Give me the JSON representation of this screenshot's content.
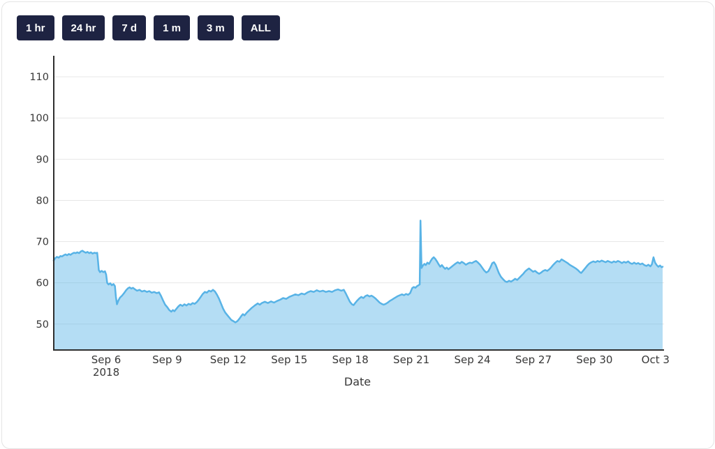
{
  "toolbar": {
    "buttons": [
      {
        "label": "1 hr"
      },
      {
        "label": "24 hr"
      },
      {
        "label": "7 d"
      },
      {
        "label": "1 m"
      },
      {
        "label": "3 m"
      },
      {
        "label": "ALL"
      }
    ]
  },
  "colors": {
    "button_bg": "#1e2342",
    "button_text": "#ffffff",
    "line": "#58b3e6",
    "area_fill": "rgba(88,179,230,0.45)",
    "grid": "#e7e7e7",
    "axis": "#2f2f2f",
    "tick_text": "#383838",
    "card_border": "#e4e4e4"
  },
  "chart_data": {
    "type": "area",
    "xlabel": "Date",
    "x_unit": "days relative to Sep 6, 2018 00:00",
    "xlim": [
      -2.575,
      27.35
    ],
    "ylim": [
      43.7,
      115.1
    ],
    "grid": true,
    "legend": "none",
    "y_ticks": [
      50,
      60,
      70,
      80,
      90,
      100,
      110
    ],
    "x_ticks": [
      {
        "day": 0,
        "label": "Sep 6",
        "sub": "2018"
      },
      {
        "day": 3,
        "label": "Sep 9"
      },
      {
        "day": 6,
        "label": "Sep 12"
      },
      {
        "day": 9,
        "label": "Sep 15"
      },
      {
        "day": 12,
        "label": "Sep 18"
      },
      {
        "day": 15,
        "label": "Sep 21"
      },
      {
        "day": 18,
        "label": "Sep 24"
      },
      {
        "day": 21,
        "label": "Sep 27"
      },
      {
        "day": 24,
        "label": "Sep 30"
      },
      {
        "day": 27,
        "label": "Oct 3"
      }
    ],
    "points": [
      [
        -2.58,
        65.4
      ],
      [
        -2.5,
        66.0
      ],
      [
        -2.42,
        66.3
      ],
      [
        -2.33,
        66.1
      ],
      [
        -2.25,
        66.5
      ],
      [
        -2.17,
        66.4
      ],
      [
        -2.08,
        66.7
      ],
      [
        -2.0,
        66.9
      ],
      [
        -1.92,
        66.7
      ],
      [
        -1.83,
        67.0
      ],
      [
        -1.75,
        66.8
      ],
      [
        -1.67,
        67.1
      ],
      [
        -1.58,
        67.3
      ],
      [
        -1.5,
        67.2
      ],
      [
        -1.42,
        67.4
      ],
      [
        -1.33,
        67.2
      ],
      [
        -1.25,
        67.6
      ],
      [
        -1.17,
        67.8
      ],
      [
        -1.08,
        67.5
      ],
      [
        -1.0,
        67.3
      ],
      [
        -0.92,
        67.5
      ],
      [
        -0.83,
        67.2
      ],
      [
        -0.75,
        67.4
      ],
      [
        -0.67,
        67.1
      ],
      [
        -0.58,
        67.3
      ],
      [
        -0.5,
        67.2
      ],
      [
        -0.44,
        67.3
      ],
      [
        -0.4,
        65.2
      ],
      [
        -0.36,
        63.1
      ],
      [
        -0.3,
        62.6
      ],
      [
        -0.22,
        62.9
      ],
      [
        -0.14,
        62.6
      ],
      [
        -0.06,
        62.8
      ],
      [
        0.0,
        62.0
      ],
      [
        0.05,
        60.0
      ],
      [
        0.12,
        59.6
      ],
      [
        0.2,
        59.9
      ],
      [
        0.28,
        59.4
      ],
      [
        0.36,
        59.7
      ],
      [
        0.43,
        59.2
      ],
      [
        0.48,
        56.6
      ],
      [
        0.53,
        54.8
      ],
      [
        0.6,
        55.7
      ],
      [
        0.68,
        56.4
      ],
      [
        0.78,
        56.9
      ],
      [
        0.88,
        57.5
      ],
      [
        0.98,
        58.2
      ],
      [
        1.08,
        58.7
      ],
      [
        1.15,
        58.9
      ],
      [
        1.24,
        58.6
      ],
      [
        1.32,
        58.8
      ],
      [
        1.42,
        58.4
      ],
      [
        1.52,
        58.1
      ],
      [
        1.64,
        58.3
      ],
      [
        1.76,
        57.9
      ],
      [
        1.88,
        58.1
      ],
      [
        2.0,
        57.8
      ],
      [
        2.12,
        58.0
      ],
      [
        2.24,
        57.6
      ],
      [
        2.36,
        57.8
      ],
      [
        2.48,
        57.5
      ],
      [
        2.6,
        57.7
      ],
      [
        2.7,
        56.8
      ],
      [
        2.8,
        55.7
      ],
      [
        2.9,
        54.7
      ],
      [
        3.0,
        54.1
      ],
      [
        3.1,
        53.4
      ],
      [
        3.2,
        53.0
      ],
      [
        3.28,
        53.4
      ],
      [
        3.36,
        53.1
      ],
      [
        3.45,
        53.7
      ],
      [
        3.55,
        54.3
      ],
      [
        3.65,
        54.7
      ],
      [
        3.75,
        54.4
      ],
      [
        3.85,
        54.8
      ],
      [
        3.95,
        54.5
      ],
      [
        4.05,
        54.9
      ],
      [
        4.15,
        54.7
      ],
      [
        4.25,
        55.1
      ],
      [
        4.35,
        54.9
      ],
      [
        4.45,
        55.3
      ],
      [
        4.55,
        55.9
      ],
      [
        4.65,
        56.6
      ],
      [
        4.75,
        57.3
      ],
      [
        4.85,
        57.8
      ],
      [
        4.95,
        57.6
      ],
      [
        5.05,
        58.1
      ],
      [
        5.15,
        57.9
      ],
      [
        5.25,
        58.3
      ],
      [
        5.35,
        57.9
      ],
      [
        5.45,
        57.1
      ],
      [
        5.55,
        56.1
      ],
      [
        5.65,
        54.9
      ],
      [
        5.75,
        53.7
      ],
      [
        5.85,
        52.8
      ],
      [
        5.95,
        52.2
      ],
      [
        6.05,
        51.6
      ],
      [
        6.15,
        51.0
      ],
      [
        6.25,
        50.7
      ],
      [
        6.35,
        50.4
      ],
      [
        6.45,
        50.7
      ],
      [
        6.55,
        51.3
      ],
      [
        6.65,
        52.0
      ],
      [
        6.72,
        52.4
      ],
      [
        6.8,
        52.1
      ],
      [
        6.9,
        52.7
      ],
      [
        7.0,
        53.2
      ],
      [
        7.15,
        53.9
      ],
      [
        7.3,
        54.5
      ],
      [
        7.45,
        55.0
      ],
      [
        7.55,
        54.7
      ],
      [
        7.65,
        55.1
      ],
      [
        7.8,
        55.4
      ],
      [
        7.95,
        55.1
      ],
      [
        8.1,
        55.5
      ],
      [
        8.25,
        55.2
      ],
      [
        8.4,
        55.6
      ],
      [
        8.55,
        55.9
      ],
      [
        8.7,
        56.3
      ],
      [
        8.85,
        56.1
      ],
      [
        9.0,
        56.6
      ],
      [
        9.15,
        56.9
      ],
      [
        9.3,
        57.2
      ],
      [
        9.45,
        57.0
      ],
      [
        9.6,
        57.4
      ],
      [
        9.75,
        57.2
      ],
      [
        9.9,
        57.7
      ],
      [
        10.05,
        58.0
      ],
      [
        10.2,
        57.8
      ],
      [
        10.35,
        58.2
      ],
      [
        10.5,
        57.9
      ],
      [
        10.65,
        58.1
      ],
      [
        10.8,
        57.8
      ],
      [
        10.95,
        58.0
      ],
      [
        11.1,
        57.8
      ],
      [
        11.25,
        58.2
      ],
      [
        11.4,
        58.4
      ],
      [
        11.55,
        58.1
      ],
      [
        11.68,
        58.3
      ],
      [
        11.78,
        57.4
      ],
      [
        11.88,
        56.4
      ],
      [
        11.98,
        55.4
      ],
      [
        12.08,
        54.8
      ],
      [
        12.16,
        54.6
      ],
      [
        12.24,
        55.1
      ],
      [
        12.34,
        55.7
      ],
      [
        12.44,
        56.2
      ],
      [
        12.54,
        56.6
      ],
      [
        12.64,
        56.3
      ],
      [
        12.74,
        56.8
      ],
      [
        12.84,
        57.0
      ],
      [
        12.94,
        56.7
      ],
      [
        13.04,
        56.9
      ],
      [
        13.14,
        56.6
      ],
      [
        13.24,
        56.2
      ],
      [
        13.34,
        55.7
      ],
      [
        13.44,
        55.2
      ],
      [
        13.54,
        54.9
      ],
      [
        13.64,
        54.7
      ],
      [
        13.74,
        54.9
      ],
      [
        13.84,
        55.2
      ],
      [
        13.94,
        55.6
      ],
      [
        14.04,
        55.9
      ],
      [
        14.14,
        56.2
      ],
      [
        14.24,
        56.5
      ],
      [
        14.34,
        56.8
      ],
      [
        14.44,
        57.0
      ],
      [
        14.54,
        57.2
      ],
      [
        14.64,
        57.0
      ],
      [
        14.74,
        57.3
      ],
      [
        14.84,
        57.1
      ],
      [
        14.94,
        57.5
      ],
      [
        15.04,
        58.7
      ],
      [
        15.12,
        59.0
      ],
      [
        15.2,
        58.8
      ],
      [
        15.28,
        59.2
      ],
      [
        15.35,
        59.4
      ],
      [
        15.41,
        59.6
      ],
      [
        15.45,
        75.1
      ],
      [
        15.5,
        63.6
      ],
      [
        15.57,
        64.2
      ],
      [
        15.64,
        64.6
      ],
      [
        15.71,
        64.3
      ],
      [
        15.79,
        64.9
      ],
      [
        15.87,
        64.6
      ],
      [
        15.95,
        65.3
      ],
      [
        16.03,
        65.9
      ],
      [
        16.1,
        66.2
      ],
      [
        16.18,
        65.8
      ],
      [
        16.26,
        65.2
      ],
      [
        16.34,
        64.5
      ],
      [
        16.42,
        63.9
      ],
      [
        16.5,
        64.3
      ],
      [
        16.58,
        63.8
      ],
      [
        16.66,
        63.4
      ],
      [
        16.74,
        63.7
      ],
      [
        16.82,
        63.3
      ],
      [
        16.9,
        63.6
      ],
      [
        16.98,
        63.9
      ],
      [
        17.08,
        64.3
      ],
      [
        17.18,
        64.7
      ],
      [
        17.28,
        65.0
      ],
      [
        17.38,
        64.7
      ],
      [
        17.48,
        65.1
      ],
      [
        17.58,
        64.8
      ],
      [
        17.68,
        64.4
      ],
      [
        17.78,
        64.7
      ],
      [
        17.88,
        64.9
      ],
      [
        17.98,
        64.8
      ],
      [
        18.08,
        65.1
      ],
      [
        18.18,
        65.3
      ],
      [
        18.28,
        64.9
      ],
      [
        18.38,
        64.4
      ],
      [
        18.48,
        63.7
      ],
      [
        18.58,
        63.0
      ],
      [
        18.68,
        62.5
      ],
      [
        18.78,
        62.8
      ],
      [
        18.88,
        63.7
      ],
      [
        18.98,
        64.8
      ],
      [
        19.06,
        65.0
      ],
      [
        19.14,
        64.4
      ],
      [
        19.22,
        63.4
      ],
      [
        19.3,
        62.4
      ],
      [
        19.4,
        61.5
      ],
      [
        19.5,
        60.9
      ],
      [
        19.6,
        60.4
      ],
      [
        19.7,
        60.2
      ],
      [
        19.8,
        60.5
      ],
      [
        19.9,
        60.3
      ],
      [
        20.0,
        60.6
      ],
      [
        20.1,
        61.0
      ],
      [
        20.2,
        60.7
      ],
      [
        20.3,
        61.2
      ],
      [
        20.4,
        61.7
      ],
      [
        20.5,
        62.2
      ],
      [
        20.6,
        62.8
      ],
      [
        20.7,
        63.2
      ],
      [
        20.78,
        63.5
      ],
      [
        20.88,
        63.1
      ],
      [
        20.98,
        62.7
      ],
      [
        21.08,
        62.9
      ],
      [
        21.18,
        62.5
      ],
      [
        21.28,
        62.2
      ],
      [
        21.38,
        62.5
      ],
      [
        21.48,
        62.9
      ],
      [
        21.58,
        63.1
      ],
      [
        21.68,
        62.9
      ],
      [
        21.78,
        63.3
      ],
      [
        21.88,
        63.8
      ],
      [
        21.98,
        64.4
      ],
      [
        22.08,
        64.9
      ],
      [
        22.18,
        65.3
      ],
      [
        22.28,
        65.1
      ],
      [
        22.38,
        65.7
      ],
      [
        22.48,
        65.4
      ],
      [
        22.58,
        65.1
      ],
      [
        22.68,
        64.8
      ],
      [
        22.78,
        64.4
      ],
      [
        22.88,
        64.1
      ],
      [
        22.98,
        63.8
      ],
      [
        23.08,
        63.5
      ],
      [
        23.18,
        63.1
      ],
      [
        23.28,
        62.6
      ],
      [
        23.35,
        62.4
      ],
      [
        23.45,
        63.0
      ],
      [
        23.55,
        63.6
      ],
      [
        23.65,
        64.2
      ],
      [
        23.75,
        64.7
      ],
      [
        23.85,
        65.0
      ],
      [
        23.95,
        65.2
      ],
      [
        24.05,
        65.0
      ],
      [
        24.15,
        65.3
      ],
      [
        24.25,
        65.1
      ],
      [
        24.35,
        65.4
      ],
      [
        24.45,
        65.2
      ],
      [
        24.55,
        65.0
      ],
      [
        24.65,
        65.3
      ],
      [
        24.75,
        65.1
      ],
      [
        24.85,
        64.9
      ],
      [
        24.95,
        65.2
      ],
      [
        25.05,
        65.0
      ],
      [
        25.15,
        65.3
      ],
      [
        25.25,
        65.1
      ],
      [
        25.35,
        64.8
      ],
      [
        25.45,
        65.1
      ],
      [
        25.55,
        64.9
      ],
      [
        25.65,
        65.2
      ],
      [
        25.75,
        64.8
      ],
      [
        25.85,
        64.6
      ],
      [
        25.95,
        64.9
      ],
      [
        26.05,
        64.6
      ],
      [
        26.15,
        64.8
      ],
      [
        26.25,
        64.5
      ],
      [
        26.35,
        64.7
      ],
      [
        26.45,
        64.3
      ],
      [
        26.55,
        64.1
      ],
      [
        26.65,
        64.4
      ],
      [
        26.75,
        64.0
      ],
      [
        26.82,
        64.5
      ],
      [
        26.9,
        66.2
      ],
      [
        26.98,
        64.9
      ],
      [
        27.06,
        64.3
      ],
      [
        27.14,
        63.9
      ],
      [
        27.22,
        64.2
      ],
      [
        27.3,
        63.8
      ],
      [
        27.35,
        63.9
      ]
    ]
  }
}
